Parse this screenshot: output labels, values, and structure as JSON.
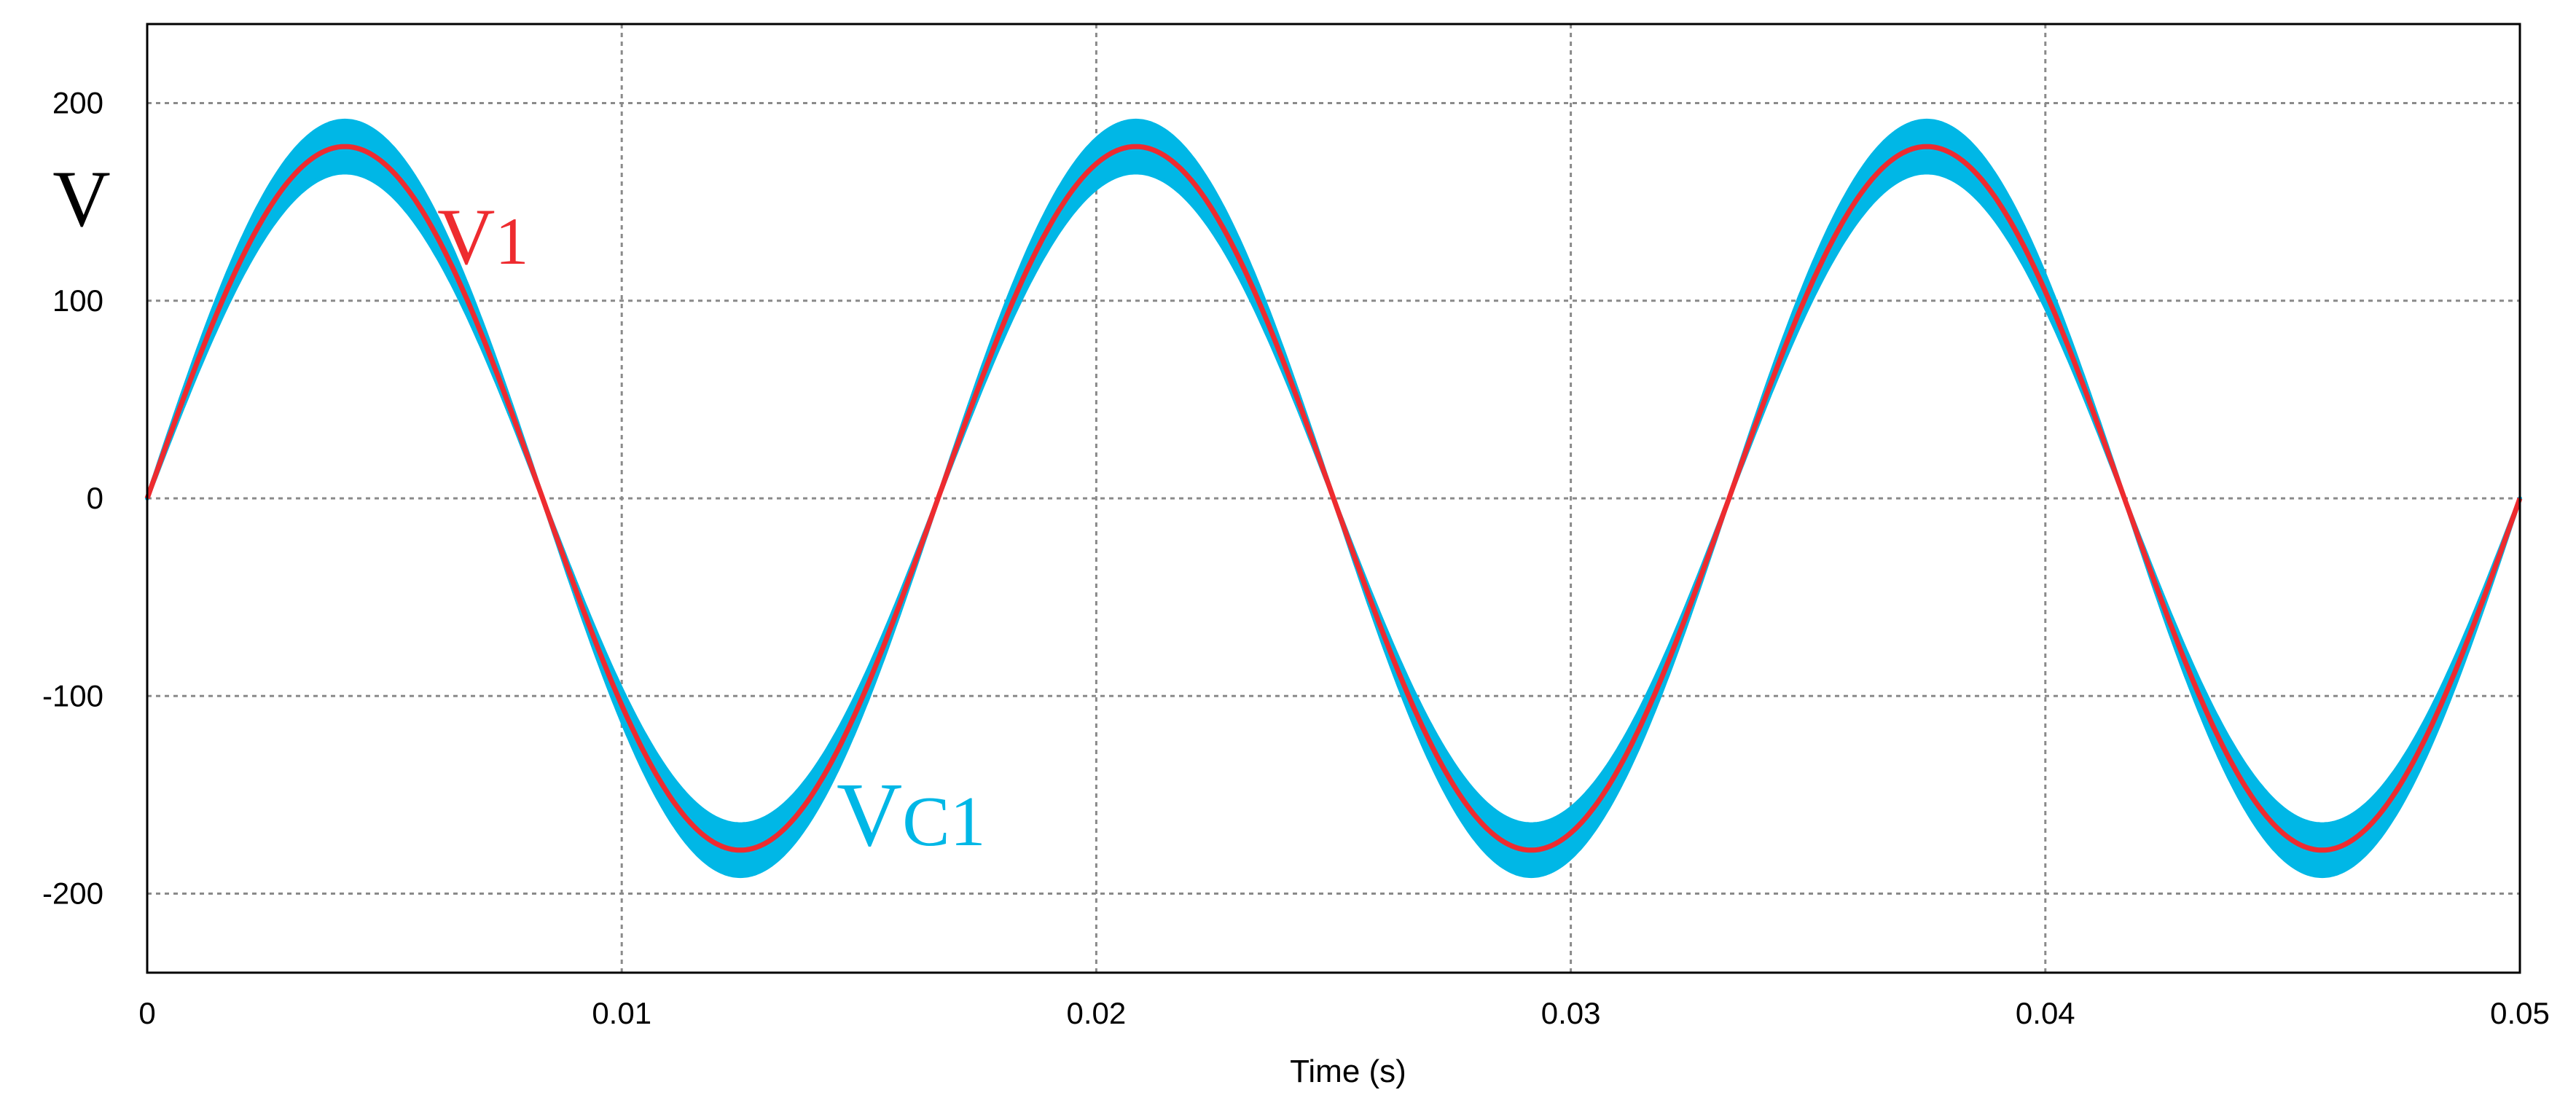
{
  "chart_data": {
    "type": "line",
    "title": "",
    "xlabel": "Time (s)",
    "ylabel": "V",
    "xlim": [
      0,
      0.05
    ],
    "ylim": [
      -240,
      240
    ],
    "xticks": [
      0,
      0.01,
      0.02,
      0.03,
      0.04,
      0.05
    ],
    "xtick_labels": [
      "0",
      "0.01",
      "0.02",
      "0.03",
      "0.04",
      "0.05"
    ],
    "yticks": [
      200,
      100,
      0,
      -100,
      -200
    ],
    "ytick_labels": [
      "200",
      "100",
      "0",
      "-100",
      "-200"
    ],
    "grid": true,
    "series": [
      {
        "name": "VC1",
        "label_main": "V",
        "label_sub": "C1",
        "color": "#00B7E6",
        "function": "sine",
        "amplitude": 178,
        "frequency_hz": 60,
        "ripple_band": 13
      },
      {
        "name": "V1",
        "label_main": "V",
        "label_sub": "1",
        "color": "#EE2B2F",
        "function": "sine",
        "amplitude": 178,
        "frequency_hz": 60
      }
    ]
  }
}
